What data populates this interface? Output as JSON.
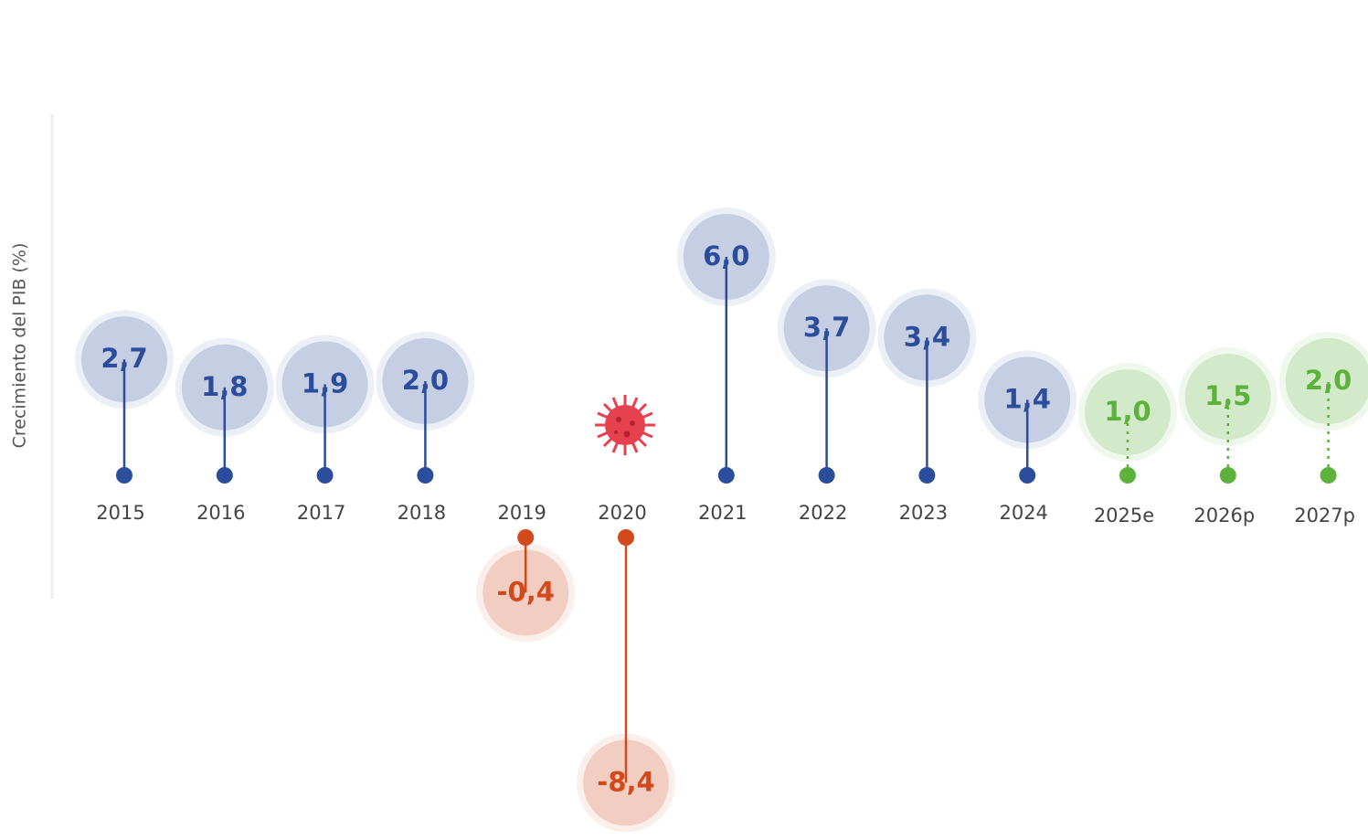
{
  "chart_data": {
    "type": "lollipop",
    "y_label": "Crecimiento del PIB (%)",
    "categories": [
      "2015",
      "2016",
      "2017",
      "2018",
      "2019",
      "2020",
      "2021",
      "2022",
      "2023",
      "2024",
      "2025e",
      "2026p",
      "2027p"
    ],
    "values": [
      2.7,
      1.8,
      1.9,
      2.0,
      -0.4,
      -8.4,
      6.0,
      3.7,
      3.4,
      1.4,
      1.0,
      1.5,
      2.0
    ],
    "value_labels": [
      "2,7",
      "1,8",
      "1,9",
      "2,0",
      "-0,4",
      "-8,4",
      "6,0",
      "3,7",
      "3,4",
      "1,4",
      "1,0",
      "1,5",
      "2,0"
    ],
    "colors": [
      "#2b4d9b",
      "#2b4d9b",
      "#2b4d9b",
      "#2b4d9b",
      "#d24a1c",
      "#d24a1c",
      "#2b4d9b",
      "#2b4d9b",
      "#2b4d9b",
      "#2b4d9b",
      "#5cb23a",
      "#5cb23a",
      "#5cb23a"
    ],
    "line_styles": [
      "solid",
      "solid",
      "solid",
      "solid",
      "solid",
      "solid",
      "solid",
      "solid",
      "solid",
      "solid",
      "dotted",
      "dotted",
      "dotted"
    ]
  }
}
